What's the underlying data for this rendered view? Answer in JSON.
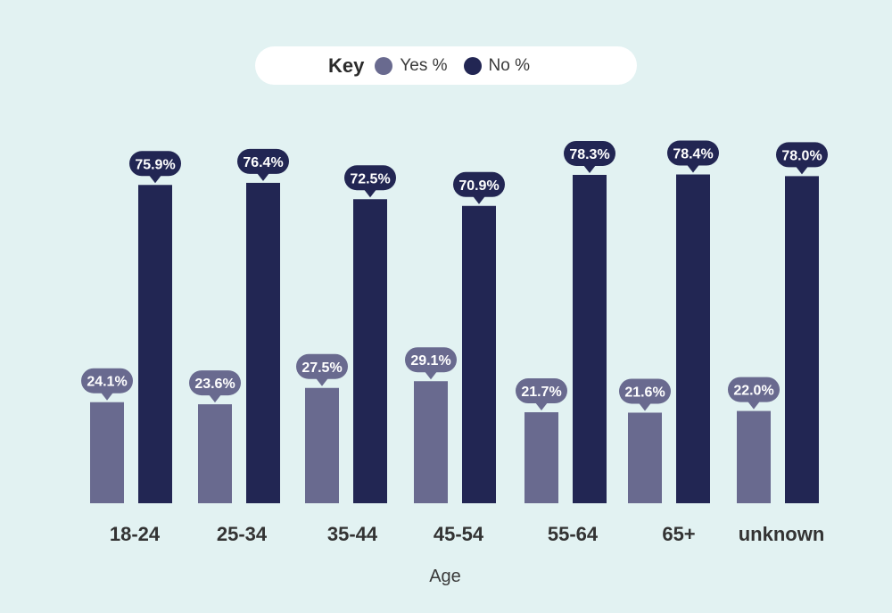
{
  "legend": {
    "title": "Key",
    "items": [
      {
        "label": "Yes %",
        "color": "#696a8f"
      },
      {
        "label": "No %",
        "color": "#222653"
      }
    ]
  },
  "chart_data": {
    "type": "bar",
    "xlabel": "Age",
    "ylabel": "",
    "ylim": [
      0,
      100
    ],
    "grid": false,
    "legend_placement": "top-center",
    "categories": [
      "18-24",
      "25-34",
      "35-44",
      "45-54",
      "55-64",
      "65+",
      "unknown"
    ],
    "series": [
      {
        "name": "Yes %",
        "color": "#696a8f",
        "values": [
          24.1,
          23.6,
          27.5,
          29.1,
          21.7,
          21.6,
          22.0
        ],
        "labels": [
          "24.1%",
          "23.6%",
          "27.5%",
          "29.1%",
          "21.7%",
          "21.6%",
          "22.0%"
        ]
      },
      {
        "name": "No %",
        "color": "#222653",
        "values": [
          75.9,
          76.4,
          72.5,
          70.9,
          78.3,
          78.4,
          78.0
        ],
        "labels": [
          "75.9%",
          "76.4%",
          "72.5%",
          "70.9%",
          "78.3%",
          "78.4%",
          "78.0%"
        ]
      }
    ]
  }
}
